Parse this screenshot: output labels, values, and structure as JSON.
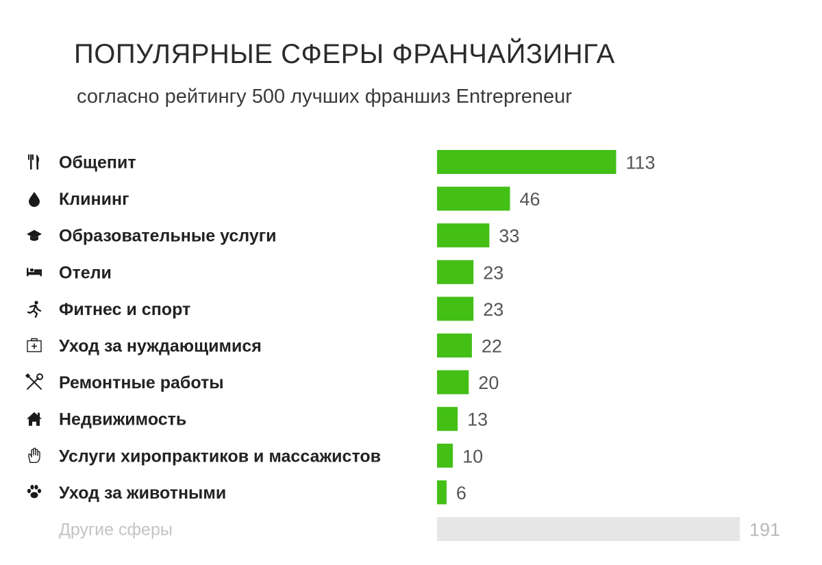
{
  "chart_data": {
    "type": "bar",
    "orientation": "horizontal",
    "title": "ПОПУЛЯРНЫЕ СФЕРЫ ФРАНЧАЙЗИНГА",
    "subtitle": "согласно рейтингу 500 лучших франшиз Entrepreneur",
    "xlabel": "",
    "ylabel": "",
    "xlim": [
      0,
      191
    ],
    "grid": false,
    "legend": "none",
    "colors": {
      "bar": "#43bf16",
      "other_bar": "#e6e6e6",
      "label": "#222222",
      "muted_label": "#c4c4c4",
      "value": "#555555"
    },
    "categories": [
      "Общепит",
      "Клининг",
      "Образовательные услуги",
      "Отели",
      "Фитнес и спорт",
      "Уход за нуждающимися",
      "Ремонтные работы",
      "Недвижимость",
      "Услуги хиропрактиков и массажистов",
      "Уход за животными",
      "Другие сферы"
    ],
    "values": [
      113,
      46,
      33,
      23,
      23,
      22,
      20,
      13,
      10,
      6,
      191
    ],
    "icons": [
      "fork-knife-icon",
      "drop-icon",
      "graduation-cap-icon",
      "bed-icon",
      "runner-icon",
      "first-aid-icon",
      "wrench-screwdriver-icon",
      "house-icon",
      "hand-icon",
      "paw-icon",
      ""
    ],
    "muted": [
      false,
      false,
      false,
      false,
      false,
      false,
      false,
      false,
      false,
      false,
      true
    ]
  }
}
